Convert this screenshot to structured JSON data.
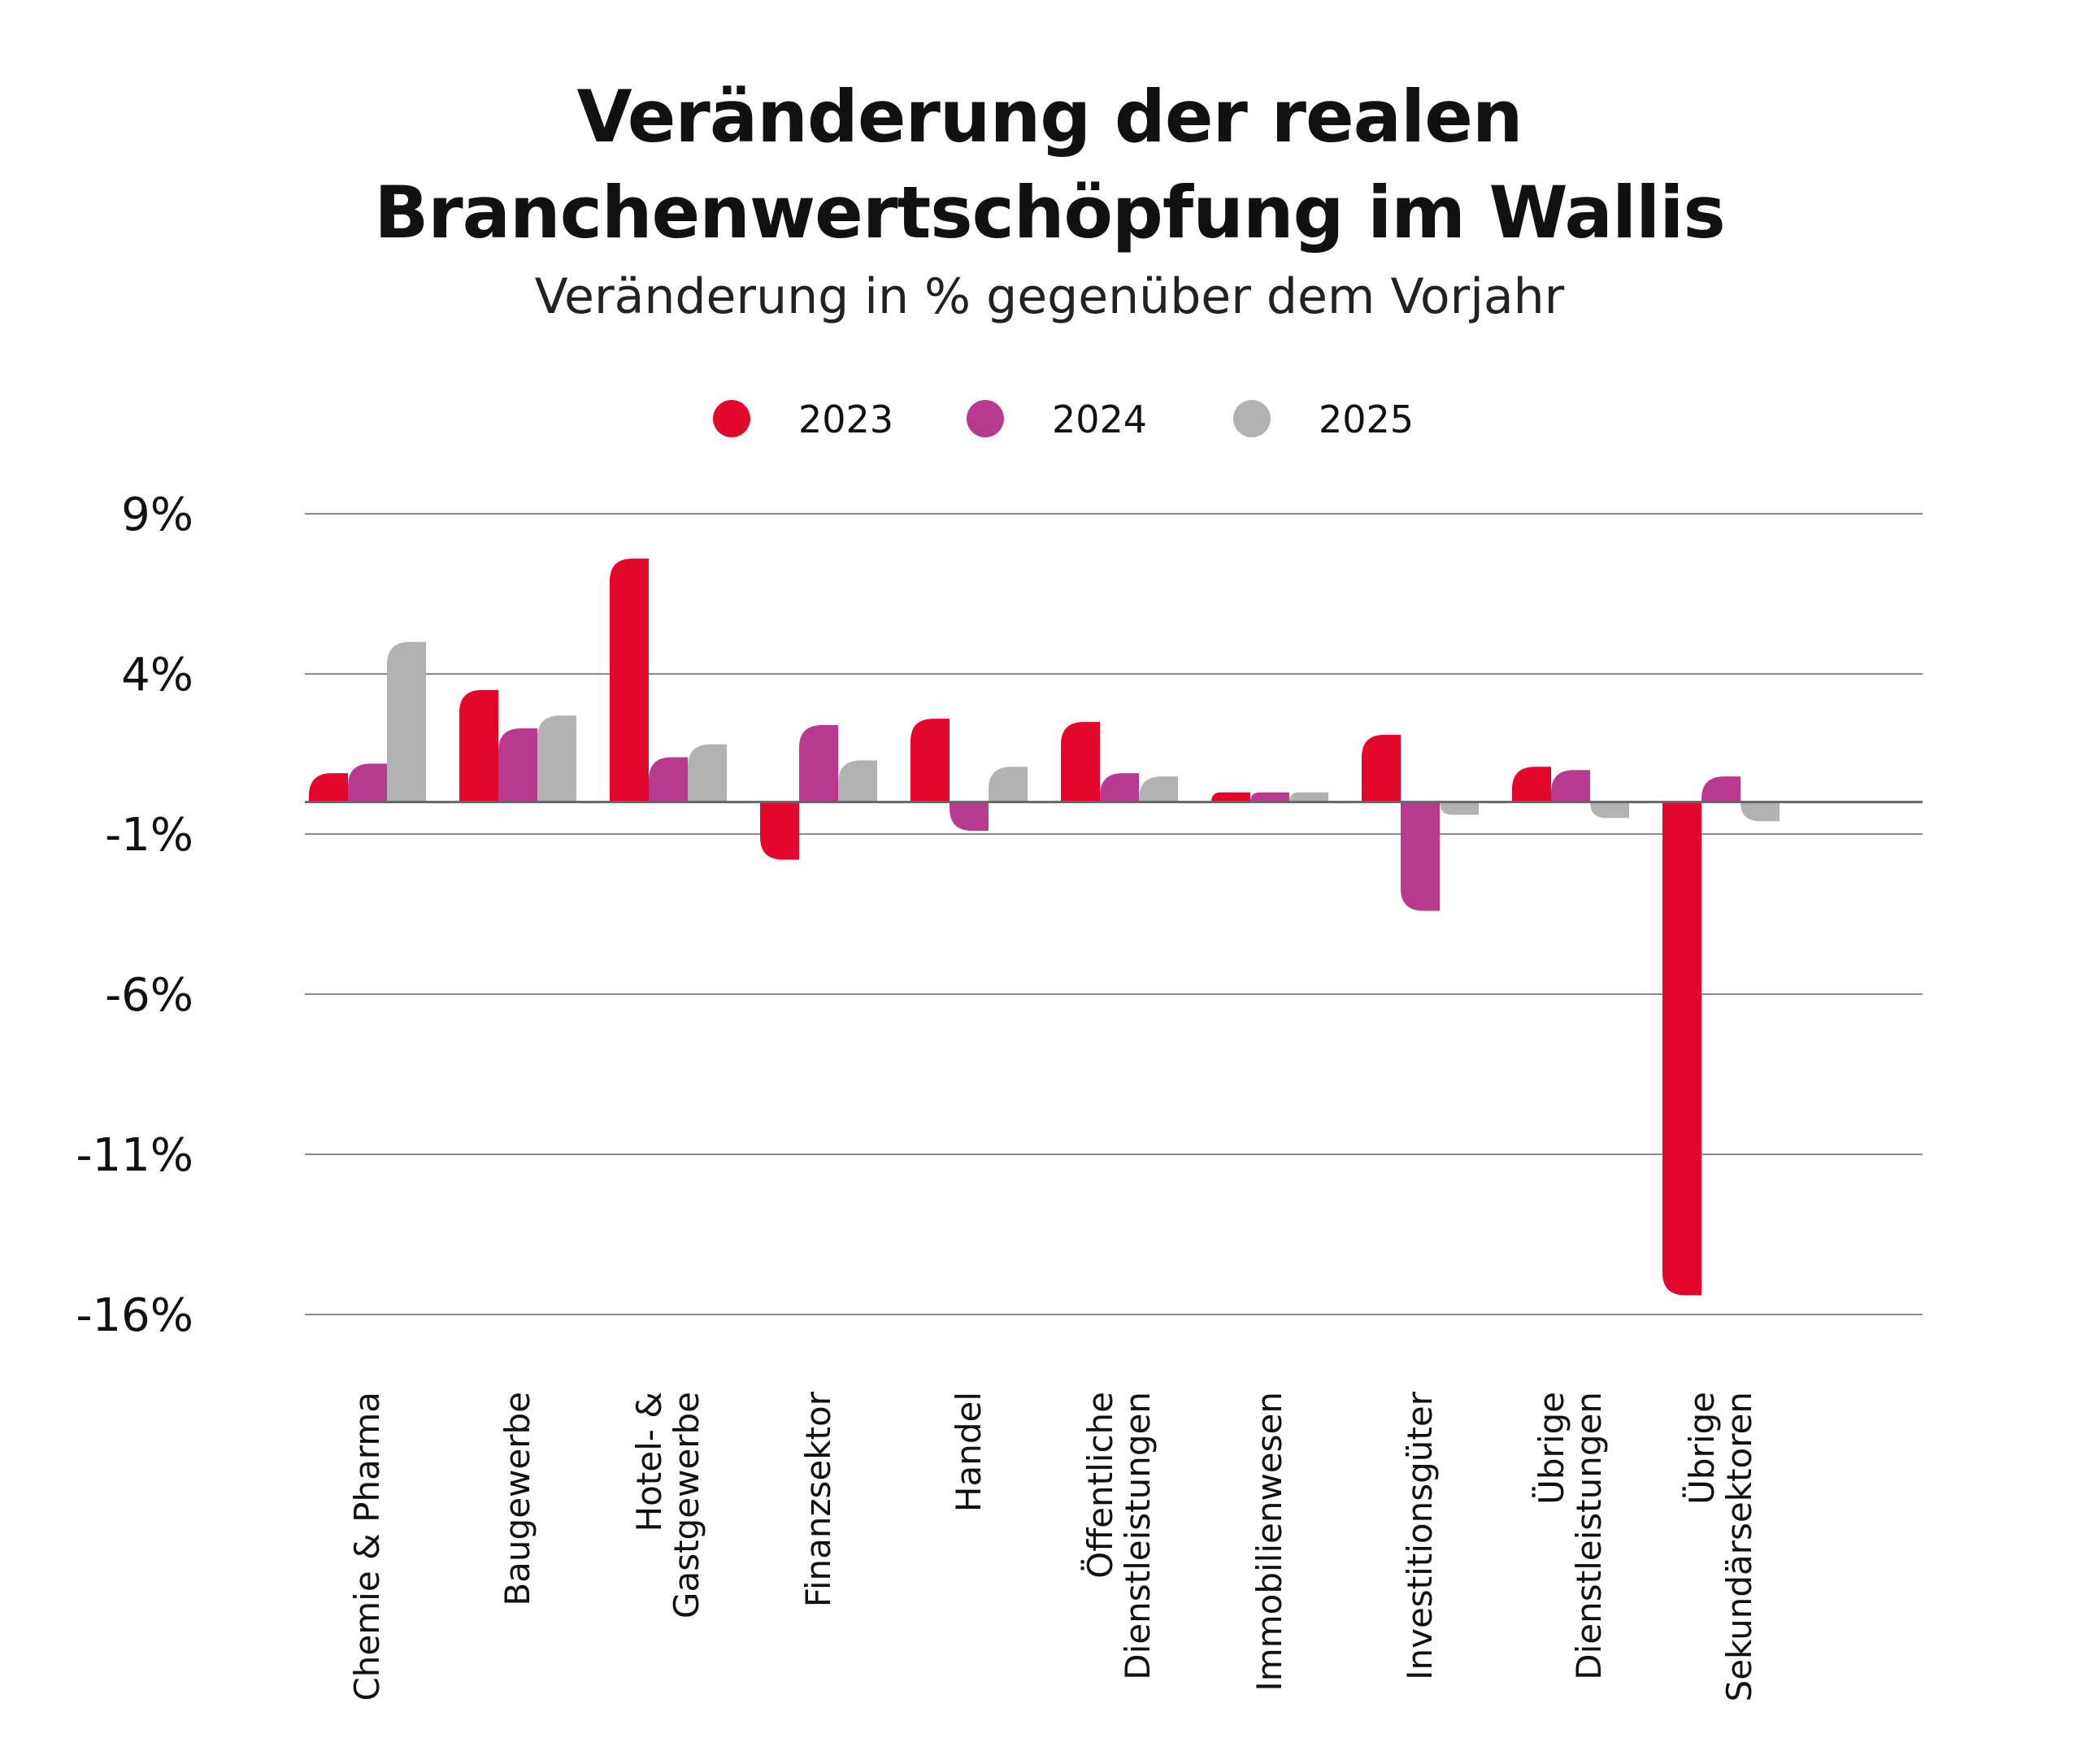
{
  "chart_data": {
    "type": "bar",
    "title_line1": "Veränderung der realen",
    "title_line2": "Branchenwertschöpfung im Wallis",
    "subtitle": "Veränderung in % gegenüber dem Vorjahr",
    "yticks": [
      "9%",
      "4%",
      "-1%",
      "-6%",
      "-11%",
      "-16%"
    ],
    "ytick_values": [
      9,
      4,
      -1,
      -6,
      -11,
      -16
    ],
    "ylim": [
      -16,
      9
    ],
    "grid": true,
    "legend_position": "top",
    "categories": [
      [
        "Chemie & Pharma"
      ],
      [
        "Baugewerbe"
      ],
      [
        "Hotel- &",
        "Gastgewerbe"
      ],
      [
        "Finanzsektor"
      ],
      [
        "Handel"
      ],
      [
        "Öffentliche",
        "Dienstleistungen"
      ],
      [
        "Immobilienwesen"
      ],
      [
        "Investitionsgüter"
      ],
      [
        "Übrige",
        "Dienstleistungen"
      ],
      [
        "Übrige",
        "Sekundärsektoren"
      ]
    ],
    "series": [
      {
        "name": "2023",
        "color": "#e3072b",
        "values": [
          0.9,
          3.5,
          7.6,
          -1.8,
          2.6,
          2.5,
          0.3,
          2.1,
          1.1,
          -15.4
        ]
      },
      {
        "name": "2024",
        "color": "#b83a8f",
        "values": [
          1.2,
          2.3,
          1.4,
          2.4,
          -0.9,
          0.9,
          0.3,
          -3.4,
          1.0,
          0.8
        ]
      },
      {
        "name": "2025",
        "color": "#b2b2b2",
        "values": [
          5.0,
          2.7,
          1.8,
          1.3,
          1.1,
          0.8,
          0.3,
          -0.4,
          -0.5,
          -0.6
        ]
      }
    ]
  }
}
